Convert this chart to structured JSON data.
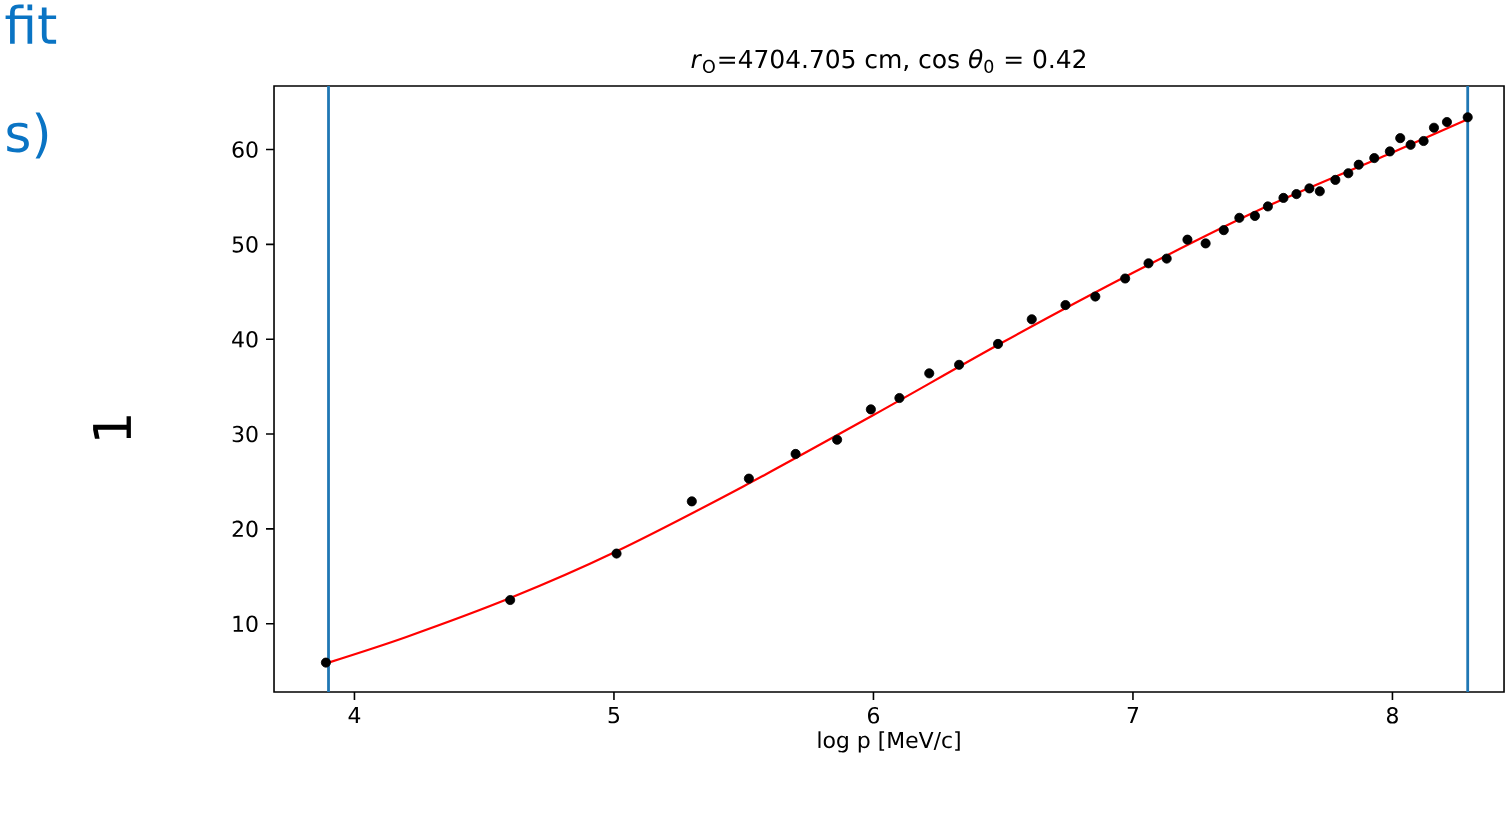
{
  "chart_data": {
    "type": "scatter",
    "title": "*r*$_{O}$=4704.705 cm, cos *θ*$_{0}$ = 0.42",
    "xlabel": "log p [MeV/c]",
    "xlim": [
      3.69,
      8.43
    ],
    "ylim": [
      2.8,
      66.7
    ],
    "xticks": [
      4,
      5,
      6,
      7,
      8
    ],
    "yticks": [
      10,
      20,
      30,
      40,
      50,
      60
    ],
    "series": [
      {
        "color": "#000000",
        "marker": "circle",
        "x": [
          3.89,
          4.6,
          5.01,
          5.3,
          5.52,
          5.7,
          5.86,
          5.99,
          6.1,
          6.215,
          6.33,
          6.48,
          6.61,
          6.74,
          6.855,
          6.97,
          7.06,
          7.13,
          7.21,
          7.28,
          7.35,
          7.41,
          7.47,
          7.52,
          7.58,
          7.63,
          7.68,
          7.72,
          7.78,
          7.83,
          7.87,
          7.93,
          7.99,
          8.03,
          8.07,
          8.12,
          8.16,
          8.21,
          8.29
        ],
        "values": [
          5.9,
          12.5,
          17.4,
          22.9,
          25.3,
          27.9,
          29.4,
          32.6,
          33.8,
          36.4,
          37.3,
          39.5,
          42.1,
          43.6,
          44.5,
          46.4,
          48.0,
          48.5,
          50.5,
          50.1,
          51.5,
          52.8,
          53.0,
          54.0,
          54.9,
          55.3,
          55.9,
          55.6,
          56.8,
          57.5,
          58.4,
          59.1,
          59.8,
          61.2,
          60.5,
          60.9,
          62.3,
          62.9,
          63.4
        ]
      },
      {
        "type": "line",
        "color": "#ff0000",
        "marker": "none",
        "x": [
          3.9,
          4.2,
          4.6,
          5.0,
          5.5,
          6.0,
          6.5,
          7.0,
          7.5,
          8.0,
          8.29
        ],
        "values": [
          5.9,
          8.6,
          12.7,
          17.5,
          24.5,
          32.0,
          39.7,
          47.0,
          53.8,
          59.7,
          63.2
        ]
      }
    ],
    "ref_lines": [
      {
        "axis": "x",
        "value": 3.9,
        "color": "#1f77b4"
      },
      {
        "axis": "x",
        "value": 8.29,
        "color": "#1f77b4"
      }
    ],
    "annotations": [
      "fit",
      "s)",
      "1"
    ]
  }
}
